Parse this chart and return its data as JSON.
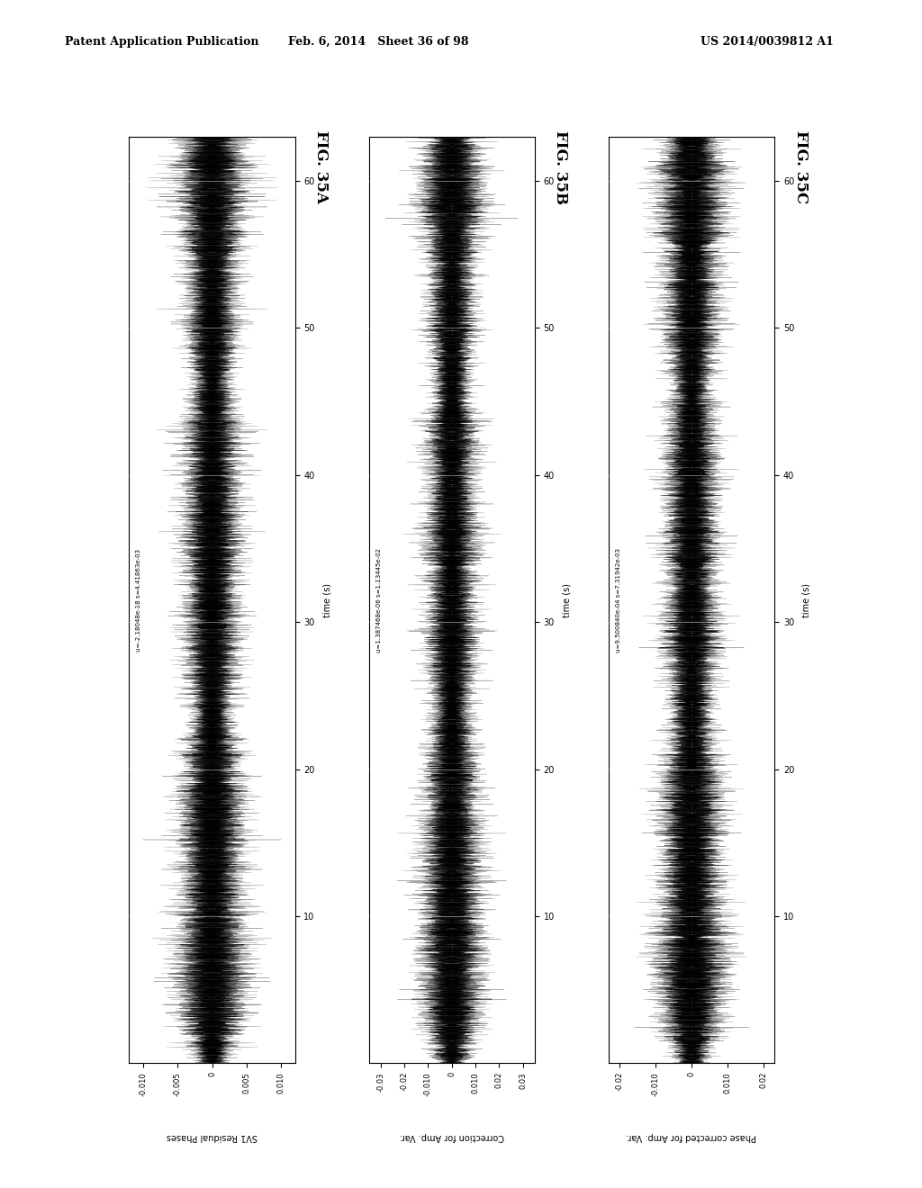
{
  "page_header_left": "Patent Application Publication",
  "page_header_mid": "Feb. 6, 2014   Sheet 36 of 98",
  "page_header_right": "US 2014/0039812 A1",
  "fig_labels": [
    "FIG. 35A",
    "FIG. 35B",
    "FIG. 35C"
  ],
  "xlabels_bottom": [
    "SV1 Residual Phases",
    "Correction for Amp. Var.",
    "Phase corrected for Amp. Var."
  ],
  "annot_A": "u=-2.18048e-18 s=4.41863e-03",
  "annot_B": "u=1.387468e-06 s=1.13445e-02",
  "annot_C": "u=9.500840e-04 s=7.31942e-03",
  "time_label": "time (s)",
  "time_max": 63,
  "yticks": [
    10,
    20,
    30,
    40,
    50,
    60
  ],
  "xticks_A": [
    0.01,
    0.005,
    0,
    -0.005,
    -0.01
  ],
  "xticks_B": [
    0.03,
    0.02,
    0.01,
    0,
    -0.01,
    -0.02,
    -0.03
  ],
  "xticks_C": [
    0.02,
    0.01,
    0,
    -0.01,
    -0.02
  ],
  "xlim_A": 0.012,
  "xlim_B": 0.035,
  "xlim_C": 0.023,
  "amp_A": 0.01,
  "amp_B": 0.028,
  "amp_C": 0.016,
  "background_color": "#ffffff",
  "waveform_color": "#000000",
  "plot_bg": "#ffffff",
  "n_points": 12000,
  "seed": 42,
  "peak_times": [
    3,
    8,
    14,
    20,
    28,
    35,
    42,
    50,
    57,
    62
  ],
  "peak_sigma": 3.0,
  "header_fontsize": 9,
  "fig_label_fontsize": 12,
  "tick_fontsize": 7,
  "annot_fontsize": 5,
  "xlabel_fontsize": 7
}
